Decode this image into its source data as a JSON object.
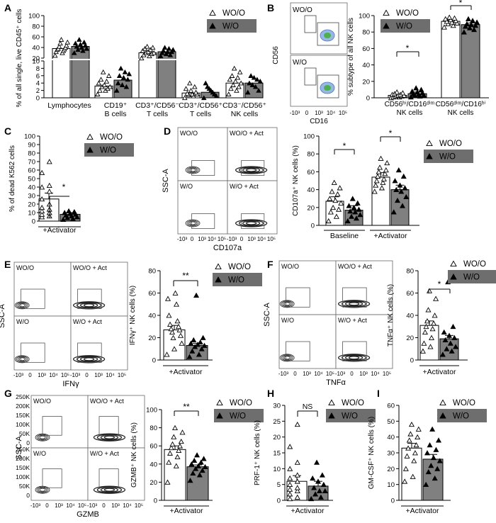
{
  "panels": {
    "A": {
      "letter": "A",
      "ylabel": "% of all single, live CD45⁺ cells",
      "legend": [
        "WO/O",
        "W/O"
      ],
      "categories": [
        "Lymphocytes",
        "CD19⁺",
        "B cells",
        "CD3⁺/CD56⁻",
        "T cells",
        "CD3⁺/CD56⁺",
        "T cells",
        "CD3⁻/CD56⁺",
        "NK cells"
      ],
      "ticks_upper": [
        "100",
        "80",
        "60",
        "40",
        "20"
      ],
      "ticks_lower": [
        "10",
        "8",
        "6",
        "4",
        "2",
        "0"
      ]
    },
    "B": {
      "letter": "B",
      "flow_labels": [
        "WO/O",
        "W/O"
      ],
      "flow_yaxis": "CD56",
      "flow_xaxis": "CD16",
      "flow_ticks": [
        "-10³",
        "0",
        "10³",
        "10⁴",
        "10⁵"
      ],
      "ylabel": "% subtype of all NK cells",
      "legend": [
        "WO/O",
        "W/O"
      ],
      "categories": [
        "CD56ʰⁱ/CD16ᵈⁱᵐ",
        "NK cells",
        "CD56ᵈⁱᵐ/CD16ʰⁱ",
        "NK cells"
      ],
      "ticks": [
        "0",
        "20",
        "40",
        "60",
        "80",
        "100"
      ],
      "sig": [
        "*",
        "*"
      ]
    },
    "C": {
      "letter": "C",
      "ylabel": "% of dead K562 cells",
      "legend": [
        "WO/O",
        "W/O"
      ],
      "xlabel": "+Activator",
      "ticks": [
        "0",
        "10",
        "20",
        "30",
        "40",
        "50",
        "60",
        "70",
        "80",
        "90",
        "100"
      ],
      "sig": "*"
    },
    "D": {
      "letter": "D",
      "flow_labels": [
        "WO/O",
        "WO/O + Act",
        "W/O",
        "W/O + Act"
      ],
      "flow_yaxis": "SSC-A",
      "flow_xaxis": "CD107a",
      "flow_ticks": [
        "-10³",
        "0",
        "10³",
        "10⁴",
        "10⁵"
      ],
      "ylabel": "CD107a⁺ NK cells (%)",
      "legend": [
        "WO/O",
        "W/O"
      ],
      "groups": [
        "Baseline",
        "+Activator"
      ],
      "ticks": [
        "0",
        "20",
        "40",
        "60",
        "80",
        "100"
      ],
      "sig": [
        "*",
        "*"
      ]
    },
    "E": {
      "letter": "E",
      "flow_labels": [
        "WO/O",
        "WO/O + Act",
        "W/O",
        "W/O + Act"
      ],
      "flow_yaxis": "SSC-A",
      "flow_xaxis": "IFNγ",
      "flow_ticks": [
        "-10³",
        "0",
        "10³",
        "10⁴",
        "10⁵"
      ],
      "ylabel": "IFNγ⁺ NK cells (%)",
      "legend": [
        "WO/O",
        "W/O"
      ],
      "xlabel": "+Activator",
      "ticks": [
        "0",
        "20",
        "40",
        "60",
        "80"
      ],
      "sig": "**"
    },
    "F": {
      "letter": "F",
      "flow_labels": [
        "WO/O",
        "WO/O + Act",
        "W/O",
        "W/O + Act"
      ],
      "flow_yaxis": "SSC-A",
      "flow_xaxis": "TNFα",
      "flow_ticks": [
        "-10³",
        "0",
        "10³",
        "10⁴",
        "10⁵"
      ],
      "ylabel": "TNFα⁺ NK cells (%)",
      "legend": [
        "WO/O",
        "W/O"
      ],
      "xlabel": "+Activator",
      "ticks": [
        "0",
        "20",
        "40",
        "60",
        "80"
      ],
      "sig": "*"
    },
    "G": {
      "letter": "G",
      "flow_labels": [
        "WO/O",
        "WO/O + Act",
        "W/O",
        "W/O + Act"
      ],
      "flow_yaxis": "SSC-A",
      "flow_xaxis": "GZMB",
      "flow_ticks": [
        "-10³",
        "0",
        "10³",
        "10⁴",
        "10⁵"
      ],
      "flow_yticks": [
        "250K",
        "200K",
        "150K",
        "100K",
        "50K",
        "0"
      ],
      "ylabel": "GZMB⁺ NK cells (%)",
      "legend": [
        "WO/O",
        "W/O"
      ],
      "xlabel": "+Activator",
      "ticks": [
        "0",
        "20",
        "40",
        "60",
        "80",
        "100"
      ],
      "sig": "**"
    },
    "H": {
      "letter": "H",
      "ylabel": "PRF-1⁺ NK cells (%)",
      "legend": [
        "WO/O",
        "W/O"
      ],
      "xlabel": "+Activator",
      "ticks": [
        "0",
        "5",
        "10",
        "15",
        "20",
        "25",
        "30"
      ],
      "sig": "NS"
    },
    "I": {
      "letter": "I",
      "ylabel": "GM-CSF⁺ NK cells (%)",
      "legend": [
        "WO/O",
        "W/O"
      ],
      "xlabel": "+Activator",
      "ticks": [
        "0",
        "10",
        "20",
        "30",
        "40",
        "50",
        "60"
      ]
    }
  },
  "colors": {
    "wo_bar": "#ffffff",
    "w_bar": "#808080",
    "legend_fill": "#6e6e6e"
  },
  "chart_data": [
    {
      "panel": "A",
      "type": "bar",
      "ylim": [
        0,
        100
      ],
      "axis_break": [
        10,
        20
      ],
      "categories": [
        "Lymphocytes",
        "CD19⁺ B cells",
        "CD3⁺/CD56⁻ T cells",
        "CD3⁺/CD56⁺ T cells",
        "CD3⁻/CD56⁺ NK cells"
      ],
      "series": [
        {
          "name": "WO/O",
          "values": [
            38,
            3.2,
            30,
            1.3,
            4.0
          ],
          "points": [
            [
              25,
              30,
              32,
              34,
              36,
              37,
              38,
              40,
              42,
              44,
              48,
              50,
              55
            ],
            [
              1,
              2,
              2,
              2.5,
              3,
              3,
              3.5,
              4,
              4.5,
              5,
              6,
              7
            ],
            [
              20,
              24,
              26,
              28,
              30,
              30,
              32,
              34,
              36,
              38,
              40,
              42
            ],
            [
              0,
              0.5,
              0.8,
              1,
              1,
              1.2,
              1.5,
              2,
              2.5,
              3,
              4
            ],
            [
              1,
              2,
              2.5,
              3,
              3.5,
              4,
              4.5,
              5,
              5.5,
              6,
              7,
              8
            ]
          ]
        },
        {
          "name": "W/O",
          "values": [
            42,
            4.8,
            32,
            1.5,
            4.0
          ],
          "points": [
            [
              30,
              34,
              36,
              38,
              40,
              42,
              44,
              46,
              48,
              50,
              55
            ],
            [
              2,
              3,
              3.5,
              4,
              5,
              5.5,
              6,
              6.5,
              7,
              8
            ],
            [
              24,
              26,
              28,
              30,
              32,
              32,
              34,
              36,
              38,
              40
            ],
            [
              0,
              0.5,
              1,
              1.5,
              2,
              2.5,
              3,
              4
            ],
            [
              1.5,
              2,
              3,
              3.5,
              4,
              4.5,
              5,
              5.5,
              6
            ]
          ]
        }
      ]
    },
    {
      "panel": "B",
      "type": "bar",
      "ylim": [
        0,
        100
      ],
      "categories": [
        "CD56ʰⁱ/CD16ᵈⁱᵐ NK cells",
        "CD56ᵈⁱᵐ/CD16ʰⁱ NK cells"
      ],
      "series": [
        {
          "name": "WO/O",
          "values": [
            3,
            93
          ],
          "points": [
            [
              0,
              1,
              1,
              2,
              2,
              3,
              3,
              4,
              4,
              5,
              6,
              7
            ],
            [
              86,
              88,
              90,
              91,
              92,
              93,
              94,
              95,
              96,
              97,
              98
            ]
          ]
        },
        {
          "name": "W/O",
          "values": [
            5,
            89
          ],
          "points": [
            [
              1,
              2,
              3,
              3,
              4,
              5,
              6,
              7,
              8,
              10,
              12
            ],
            [
              80,
              83,
              85,
              87,
              88,
              89,
              90,
              92,
              94,
              96
            ]
          ]
        }
      ]
    },
    {
      "panel": "C",
      "type": "bar",
      "ylim": [
        0,
        100
      ],
      "categories": [
        "+Activator"
      ],
      "series": [
        {
          "name": "WO/O",
          "values": [
            26
          ],
          "points": [
            [
              5,
              6,
              8,
              10,
              12,
              14,
              16,
              20,
              26,
              35,
              40,
              42,
              57,
              70
            ]
          ]
        },
        {
          "name": "W/O",
          "values": [
            8
          ],
          "points": [
            [
              2,
              3,
              4,
              5,
              6,
              7,
              8,
              9,
              10,
              11,
              12
            ]
          ]
        }
      ]
    },
    {
      "panel": "D",
      "type": "bar",
      "ylim": [
        0,
        100
      ],
      "categories": [
        "Baseline",
        "+Activator"
      ],
      "series": [
        {
          "name": "WO/O",
          "values": [
            27,
            54
          ],
          "points": [
            [
              5,
              10,
              15,
              18,
              20,
              25,
              28,
              30,
              35,
              38,
              42,
              48
            ],
            [
              38,
              42,
              45,
              48,
              50,
              52,
              55,
              58,
              60,
              62,
              65,
              70,
              75
            ]
          ]
        },
        {
          "name": "W/O",
          "values": [
            17,
            40
          ],
          "points": [
            [
              5,
              8,
              10,
              12,
              15,
              16,
              18,
              20,
              22,
              25,
              30
            ],
            [
              15,
              22,
              28,
              32,
              38,
              40,
              42,
              45,
              50,
              55,
              62
            ]
          ]
        }
      ]
    },
    {
      "panel": "E",
      "type": "bar",
      "ylim": [
        0,
        80
      ],
      "categories": [
        "+Activator"
      ],
      "series": [
        {
          "name": "WO/O",
          "values": [
            27
          ],
          "points": [
            [
              5,
              10,
              15,
              20,
              22,
              25,
              27,
              28,
              30,
              32,
              35,
              40,
              50,
              55,
              60
            ]
          ]
        },
        {
          "name": "W/O",
          "values": [
            13
          ],
          "points": [
            [
              3,
              5,
              8,
              10,
              12,
              13,
              14,
              15,
              16,
              18,
              20,
              58
            ]
          ]
        }
      ]
    },
    {
      "panel": "F",
      "type": "bar",
      "ylim": [
        0,
        80
      ],
      "categories": [
        "+Activator"
      ],
      "series": [
        {
          "name": "WO/O",
          "values": [
            31
          ],
          "points": [
            [
              8,
              12,
              15,
              20,
              25,
              28,
              30,
              33,
              35,
              40,
              45,
              55,
              62
            ]
          ]
        },
        {
          "name": "W/O",
          "values": [
            19
          ],
          "points": [
            [
              5,
              8,
              10,
              12,
              15,
              18,
              20,
              22,
              25,
              30,
              70
            ]
          ]
        }
      ]
    },
    {
      "panel": "G",
      "type": "bar",
      "ylim": [
        0,
        100
      ],
      "categories": [
        "+Activator"
      ],
      "series": [
        {
          "name": "WO/O",
          "values": [
            56
          ],
          "points": [
            [
              20,
              38,
              42,
              48,
              52,
              55,
              58,
              60,
              62,
              65,
              70,
              75,
              80
            ]
          ]
        },
        {
          "name": "W/O",
          "values": [
            37
          ],
          "points": [
            [
              22,
              28,
              30,
              33,
              35,
              37,
              38,
              40,
              42,
              44,
              46,
              50
            ]
          ]
        }
      ]
    },
    {
      "panel": "H",
      "type": "bar",
      "ylim": [
        0,
        30
      ],
      "categories": [
        "+Activator"
      ],
      "series": [
        {
          "name": "WO/O",
          "values": [
            6
          ],
          "points": [
            [
              0.5,
              1,
              2,
              3,
              3.5,
              4,
              5,
              6,
              7,
              8,
              10,
              12,
              17,
              24
            ]
          ]
        },
        {
          "name": "W/O",
          "values": [
            4.5
          ],
          "points": [
            [
              0.5,
              1,
              2,
              3,
              3,
              4,
              5,
              6,
              7,
              8,
              12
            ]
          ]
        }
      ]
    },
    {
      "panel": "I",
      "type": "bar",
      "ylim": [
        0,
        60
      ],
      "categories": [
        "+Activator"
      ],
      "series": [
        {
          "name": "WO/O",
          "values": [
            33
          ],
          "points": [
            [
              12,
              15,
              20,
              25,
              28,
              30,
              33,
              35,
              38,
              40,
              42,
              45,
              48
            ]
          ]
        },
        {
          "name": "W/O",
          "values": [
            26
          ],
          "points": [
            [
              10,
              14,
              18,
              20,
              22,
              25,
              27,
              30,
              32,
              35,
              38,
              45
            ]
          ]
        }
      ]
    }
  ]
}
